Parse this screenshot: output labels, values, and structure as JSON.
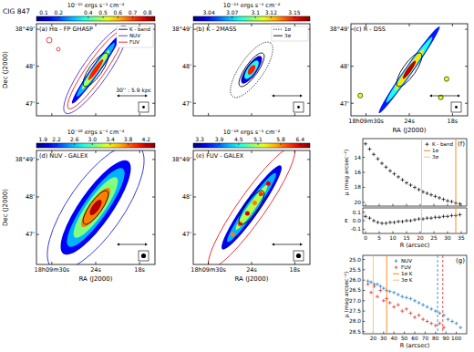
{
  "chart_data": [
    {
      "type": "image",
      "title": "(a) Hα - FP GHASP",
      "annotations": [
        "CIG 847",
        "30'' : 5.9 kpc"
      ],
      "ylabel": "Dec (J2000)",
      "xlim": [
        32.1,
        15.9
      ],
      "xticks": [
        30,
        24,
        18
      ],
      "ylim": [
        46.66,
        49.15
      ],
      "yticks": [
        {
          "value": 49,
          "label": "38°49'"
        },
        {
          "value": 48,
          "label": "48'"
        },
        {
          "value": 47,
          "label": "47'"
        }
      ],
      "tick_labels": "y",
      "colorbar": {
        "label": "10⁻¹⁵ ergs s⁻¹ cm⁻²",
        "range": [
          0.05,
          0.85
        ],
        "ticks": [
          0.1,
          0.2,
          0.4,
          0.5,
          0.6,
          0.7,
          0.8
        ]
      },
      "legend": "upper right",
      "series": [
        {
          "name": "K - band",
          "color": "#000000",
          "line_style": "solid"
        },
        {
          "name": "NUV",
          "color": "#4b2bd1",
          "line_style": "solid"
        },
        {
          "name": "FUV",
          "color": "#e31a1c",
          "line_style": "solid"
        }
      ]
    },
    {
      "type": "image",
      "title": "(b) K - 2MASS",
      "xlim": [
        32.1,
        15.9
      ],
      "xticks": [
        30,
        24,
        18
      ],
      "ylim": [
        46.66,
        49.15
      ],
      "yticks": [
        {
          "value": 49,
          "label": "38°49'"
        },
        {
          "value": 48,
          "label": "48'"
        },
        {
          "value": 47,
          "label": "47'"
        }
      ],
      "tick_labels": "y",
      "colorbar": {
        "label": "10⁻¹⁴ ergs s⁻¹ cm⁻²",
        "range": [
          3.02,
          3.17
        ],
        "ticks": [
          3.04,
          3.07,
          3.1,
          3.12,
          3.15
        ]
      },
      "legend": "upper right",
      "series": [
        {
          "name": "1σ",
          "color": "#000000",
          "line_style": "dotted"
        },
        {
          "name": "3σ",
          "color": "#000000",
          "line_style": "solid"
        }
      ]
    },
    {
      "type": "image",
      "title": "(c) R - DSS",
      "xlabel": "RA (J2000)",
      "xlim": [
        32.1,
        15.9
      ],
      "xticks": [
        {
          "value": 30,
          "label": "18h09m30s"
        },
        {
          "value": 24,
          "label": "24s"
        },
        {
          "value": 18,
          "label": "18s"
        }
      ],
      "ylim": [
        46.66,
        49.15
      ],
      "yticks": [
        {
          "value": 49,
          "label": "38°49'"
        },
        {
          "value": 48,
          "label": "48'"
        },
        {
          "value": 47,
          "label": "47'"
        }
      ]
    },
    {
      "type": "image",
      "title": "(d) NUV - GALEX",
      "xlabel": "RA (J2000)",
      "ylabel": "Dec (J2000)",
      "xlim": [
        32.1,
        15.9
      ],
      "xticks": [
        {
          "value": 30,
          "label": "18h09m30s"
        },
        {
          "value": 24,
          "label": "24s"
        },
        {
          "value": 18,
          "label": "18s"
        }
      ],
      "ylim": [
        46.2,
        49.24
      ],
      "yticks": [
        {
          "value": 49,
          "label": "38°49'"
        },
        {
          "value": 48,
          "label": "48'"
        },
        {
          "value": 47,
          "label": "47'"
        }
      ],
      "colorbar": {
        "label": "10⁻¹⁸ ergs s⁻¹ cm⁻²",
        "range": [
          1.75,
          4.4
        ],
        "ticks": [
          1.9,
          2.2,
          2.6,
          {
            "value": 3,
            "label": "3.0"
          },
          3.4,
          3.8,
          4.2
        ]
      }
    },
    {
      "type": "image",
      "title": "(e) FUV - GALEX",
      "xlabel": "RA (J2000)",
      "xlim": [
        32.1,
        15.9
      ],
      "xticks": [
        {
          "value": 30,
          "label": "18h09m30s"
        },
        {
          "value": 24,
          "label": "24s"
        },
        {
          "value": 18,
          "label": "18s"
        }
      ],
      "ylim": [
        46.2,
        49.24
      ],
      "yticks": [
        {
          "value": 49,
          "label": "38°49'"
        },
        {
          "value": 48,
          "label": "48'"
        },
        {
          "value": 47,
          "label": "47'"
        }
      ],
      "colorbar": {
        "label": "10⁻¹⁸ ergs s⁻¹ cm⁻²",
        "range": [
          3.1,
          6.7
        ],
        "ticks": [
          3.3,
          3.9,
          4.5,
          5.1,
          5.8,
          6.4
        ]
      }
    },
    {
      "type": "scatter",
      "title": "(f)",
      "ylabel": "μ (mag arcsec⁻²)",
      "xlim": [
        -1,
        37
      ],
      "xticks": [
        0,
        5,
        10,
        15,
        20,
        25,
        30,
        35
      ],
      "ylim": [
        20.5,
        11.5
      ],
      "yticks": [
        14,
        16,
        18,
        20
      ],
      "tick_labels": "y",
      "legend": "upper right",
      "series": [
        {
          "name": "K - band",
          "color": "#000000",
          "marker": "plus",
          "x": [
            0,
            1.5,
            3,
            4.5,
            6,
            7.5,
            9,
            10.5,
            12,
            13.5,
            15,
            16.5,
            18,
            19.5,
            21,
            22.5,
            24,
            25.5,
            27,
            28.5,
            30,
            31.5,
            33,
            34.5
          ],
          "values": [
            12.2,
            12.9,
            13.6,
            14.2,
            14.8,
            15.3,
            15.8,
            16.2,
            16.6,
            17.0,
            17.4,
            17.7,
            18.0,
            18.3,
            18.6,
            18.8,
            19.0,
            19.2,
            19.4,
            19.6,
            19.8,
            19.9,
            20.1,
            20.2
          ]
        },
        {
          "name": "1σ",
          "type": "vline",
          "color": "#ff7f0e",
          "x": 33
        },
        {
          "name": "3σ",
          "type": "vline",
          "color": "#ffbb78",
          "x": 20.5
        }
      ]
    },
    {
      "type": "scatter",
      "xlabel": "R (arcsec)",
      "ylabel": "ε",
      "xlim": [
        -1,
        37
      ],
      "xticks": [
        0,
        5,
        10,
        15,
        20,
        25,
        30,
        35
      ],
      "ylim": [
        -0.15,
        0.15
      ],
      "yticks": [
        -0.1,
        {
          "value": 0,
          "label": "0.0"
        },
        0.1
      ],
      "series": [
        {
          "color": "#000000",
          "marker": "plus",
          "x": [
            0,
            1.5,
            3,
            4.5,
            6,
            7.5,
            9,
            10.5,
            12,
            13.5,
            15,
            16.5,
            18,
            19.5,
            21,
            22.5,
            24,
            25.5,
            27,
            28.5,
            30,
            31.5,
            33,
            34.5
          ],
          "values": [
            0.05,
            0.03,
            0.0,
            -0.02,
            -0.03,
            -0.03,
            -0.02,
            -0.02,
            -0.01,
            -0.01,
            0.0,
            0.0,
            0.01,
            0.02,
            0.02,
            0.03,
            0.03,
            0.04,
            0.04,
            0.05,
            0.05,
            0.06,
            0.06,
            0.07
          ]
        },
        {
          "type": "vline",
          "color": "#ff7f0e",
          "x": 33
        },
        {
          "type": "vline",
          "color": "#ffbb78",
          "x": 20.5
        }
      ]
    },
    {
      "type": "scatter",
      "title": "(g)",
      "xlabel": "R (arcsec)",
      "ylabel": "μ (mag arcsec⁻²)",
      "xlim": [
        10,
        110
      ],
      "xticks": [
        20,
        30,
        40,
        50,
        60,
        70,
        80,
        90,
        100
      ],
      "ylim": [
        28.6,
        24.8
      ],
      "yticks": [
        {
          "value": 25,
          "label": "25.0"
        },
        25.5,
        {
          "value": 26,
          "label": "26.0"
        },
        26.5,
        {
          "value": 27,
          "label": "27.0"
        },
        27.5,
        {
          "value": 28,
          "label": "28.0"
        },
        28.5
      ],
      "legend": "upper right",
      "series": [
        {
          "name": "NUV",
          "color": "#1f77b4",
          "marker": "plus",
          "x": [
            15,
            18,
            21,
            24,
            27,
            30,
            33,
            36,
            40,
            44,
            48,
            52,
            56,
            60,
            64,
            68,
            72,
            76,
            80,
            84,
            88,
            92,
            96,
            100,
            104
          ],
          "values": [
            26.05,
            26.1,
            26.2,
            26.2,
            26.3,
            26.4,
            26.5,
            26.55,
            26.6,
            26.7,
            26.8,
            26.85,
            26.9,
            27.0,
            27.1,
            27.2,
            27.3,
            27.4,
            27.5,
            27.6,
            27.7,
            27.9,
            28.0,
            28.1,
            28.3
          ],
          "limit": 82
        },
        {
          "name": "FUV",
          "color": "#d62728",
          "marker": "plus",
          "x": [
            15,
            18,
            21,
            24,
            27,
            30,
            33,
            36,
            40,
            44,
            48,
            52,
            56,
            60,
            64,
            68,
            72,
            76,
            80,
            84,
            88
          ],
          "values": [
            26.2,
            26.6,
            26.3,
            26.8,
            26.5,
            27.0,
            26.9,
            27.1,
            27.3,
            27.2,
            27.5,
            27.4,
            27.6,
            27.8,
            27.7,
            27.9,
            28.0,
            28.1,
            28.2,
            28.1,
            28.3
          ],
          "limit": 87
        },
        {
          "name": "1σ K",
          "type": "vline",
          "color": "#ff7f0e",
          "x": 33
        },
        {
          "name": "3σ K",
          "type": "vline",
          "color": "#ffbb78",
          "x": 20
        }
      ]
    }
  ]
}
